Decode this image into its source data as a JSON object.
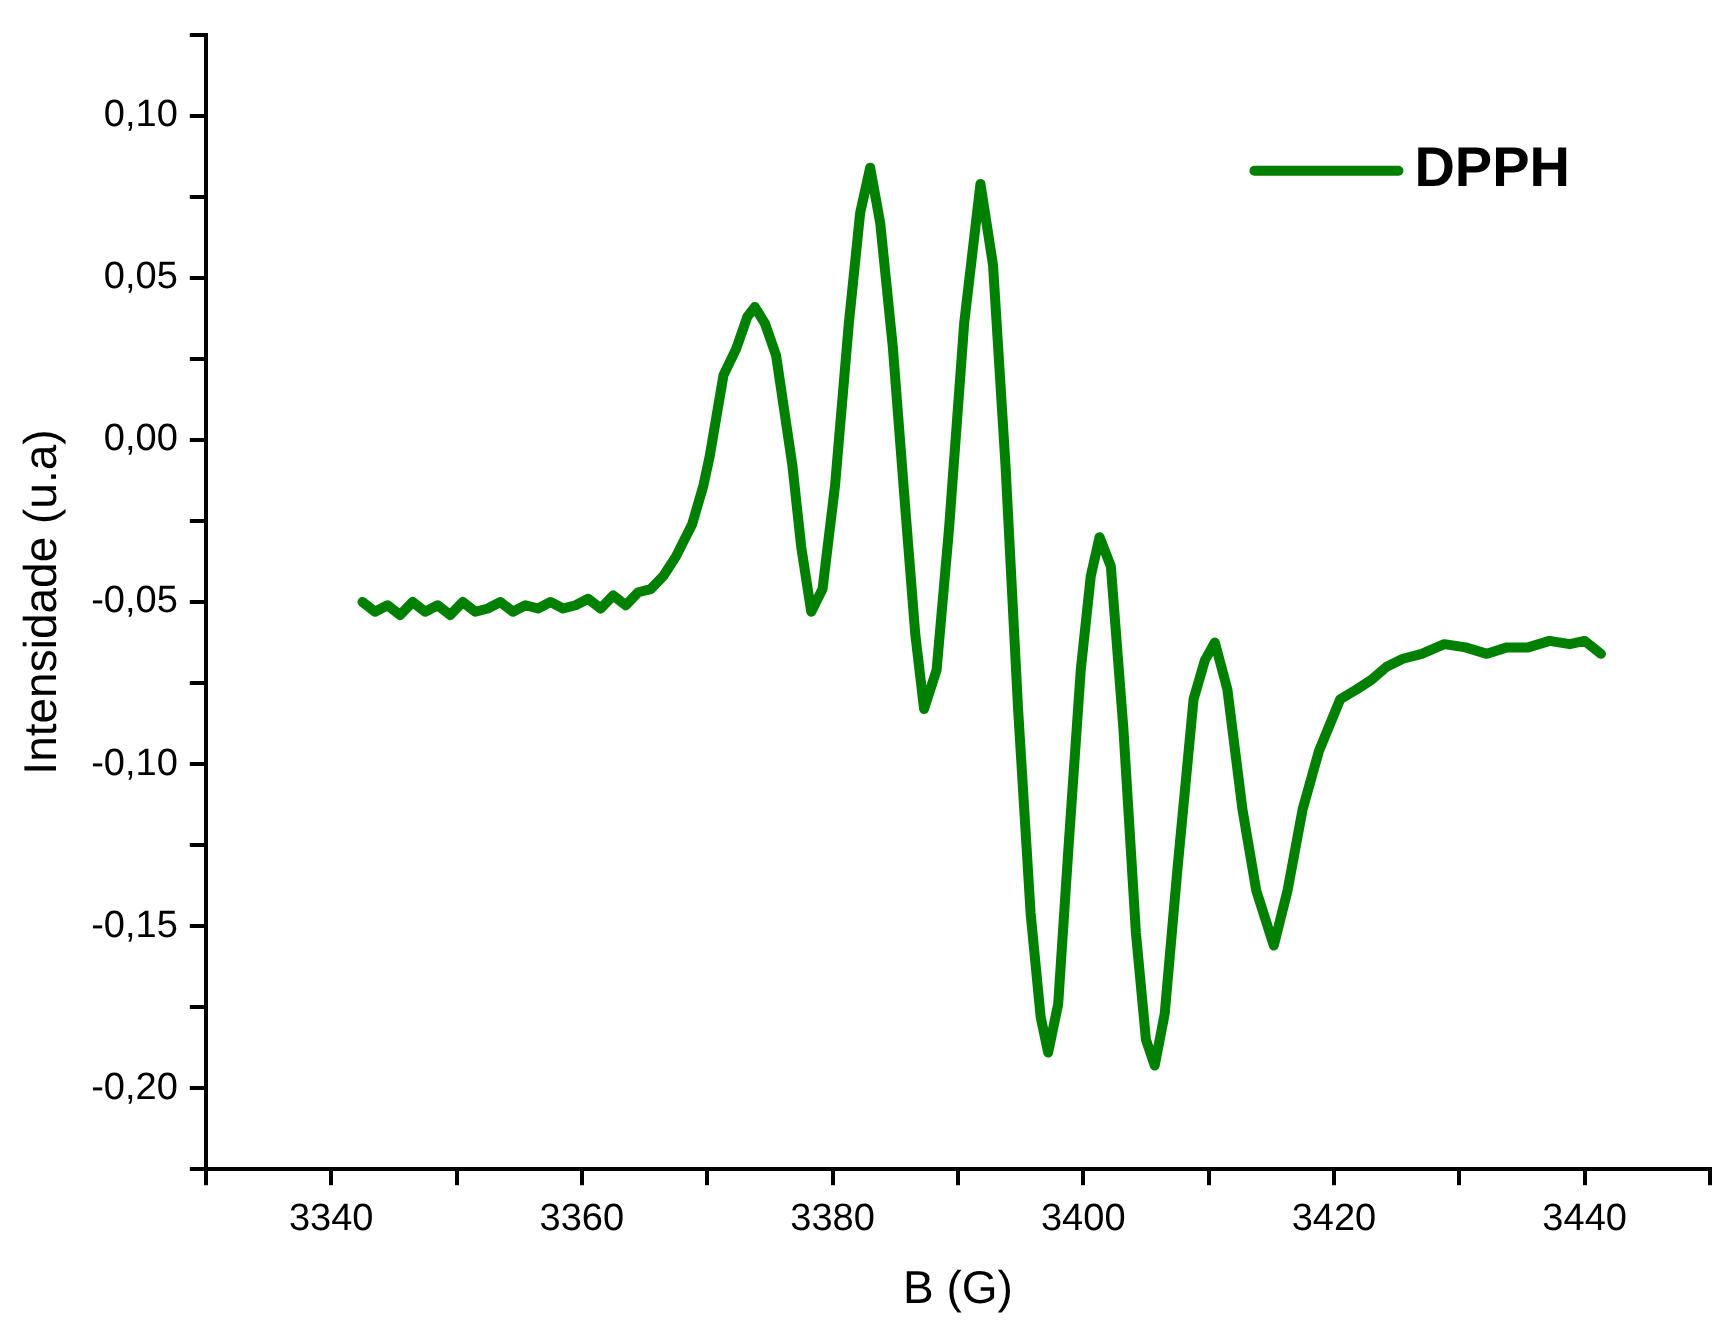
{
  "chart_data": {
    "type": "line",
    "xlabel": "B (G)",
    "ylabel": "Intensidade (u.a)",
    "xlim": [
      3330,
      3450
    ],
    "ylim": [
      -0.225,
      0.125
    ],
    "xticks": [
      {
        "value": 3330,
        "label": null
      },
      3340,
      {
        "value": 3350,
        "label": null
      },
      3360,
      {
        "value": 3370,
        "label": null
      },
      3380,
      {
        "value": 3390,
        "label": null
      },
      3400,
      {
        "value": 3410,
        "label": null
      },
      3420,
      {
        "value": 3430,
        "label": null
      },
      3440,
      {
        "value": 3450,
        "label": null
      }
    ],
    "yticks": [
      {
        "value": -0.225,
        "label": null
      },
      {
        "value": -0.2,
        "label": "-0,20"
      },
      {
        "value": -0.175,
        "label": null
      },
      {
        "value": -0.15,
        "label": "-0,15"
      },
      {
        "value": -0.125,
        "label": null
      },
      {
        "value": -0.1,
        "label": "-0,10"
      },
      {
        "value": -0.075,
        "label": null
      },
      {
        "value": -0.05,
        "label": "-0,05"
      },
      {
        "value": -0.025,
        "label": null
      },
      {
        "value": 0,
        "label": "0,00"
      },
      {
        "value": 0.025,
        "label": null
      },
      {
        "value": 0.05,
        "label": "0,05"
      },
      {
        "value": 0.075,
        "label": null
      },
      {
        "value": 0.1,
        "label": "0,10"
      },
      {
        "value": 0.125,
        "label": null
      }
    ],
    "grid": false,
    "legend": "top right",
    "marker": "none",
    "line_style": "solid",
    "series": [
      {
        "name": "DPPH",
        "color": "#008000",
        "x": [
          3342.5,
          3343.5,
          3344.5,
          3345.5,
          3346.5,
          3347.5,
          3348.5,
          3349.5,
          3350.5,
          3351.5,
          3352.5,
          3353.5,
          3354.5,
          3355.5,
          3356.5,
          3357.5,
          3358.5,
          3359.5,
          3360.5,
          3361.5,
          3362.5,
          3363.5,
          3364.5,
          3365.5,
          3366.5,
          3367.5,
          3368.8,
          3369.7,
          3370.2,
          3371.3,
          3372.3,
          3373.2,
          3373.8,
          3374.6,
          3375.5,
          3376.8,
          3377.5,
          3378.3,
          3379.2,
          3380.2,
          3381.3,
          3382.2,
          3383,
          3383.8,
          3384.8,
          3385.8,
          3386.6,
          3387.3,
          3388.3,
          3389.3,
          3390.5,
          3391.8,
          3392.8,
          3393.8,
          3394.8,
          3395.8,
          3396.6,
          3397.2,
          3398,
          3398.8,
          3399.8,
          3400.6,
          3401.3,
          3402.2,
          3403.2,
          3404.2,
          3405,
          3405.7,
          3406.5,
          3407.5,
          3408.8,
          3409.7,
          3410.5,
          3411.5,
          3412.7,
          3413.8,
          3415.2,
          3416.3,
          3417.5,
          3418.8,
          3420.5,
          3421.8,
          3423,
          3424.2,
          3425.5,
          3427,
          3428.8,
          3430.5,
          3432.2,
          3433.8,
          3435.5,
          3437.2,
          3438.8,
          3440,
          3441.3
        ],
        "values": [
          -0.05,
          -0.053,
          -0.051,
          -0.054,
          -0.05,
          -0.053,
          -0.051,
          -0.054,
          -0.05,
          -0.053,
          -0.052,
          -0.05,
          -0.053,
          -0.051,
          -0.052,
          -0.05,
          -0.052,
          -0.051,
          -0.049,
          -0.052,
          -0.048,
          -0.051,
          -0.047,
          -0.046,
          -0.042,
          -0.036,
          -0.026,
          -0.014,
          -0.005,
          0.02,
          0.028,
          0.038,
          0.041,
          0.036,
          0.026,
          -0.008,
          -0.033,
          -0.053,
          -0.046,
          -0.014,
          0.036,
          0.07,
          0.084,
          0.067,
          0.029,
          -0.021,
          -0.06,
          -0.083,
          -0.071,
          -0.027,
          0.036,
          0.079,
          0.054,
          -0.008,
          -0.083,
          -0.146,
          -0.178,
          -0.189,
          -0.174,
          -0.127,
          -0.071,
          -0.042,
          -0.03,
          -0.039,
          -0.089,
          -0.152,
          -0.185,
          -0.193,
          -0.177,
          -0.133,
          -0.08,
          -0.068,
          -0.0625,
          -0.077,
          -0.114,
          -0.139,
          -0.156,
          -0.139,
          -0.114,
          -0.096,
          -0.08,
          -0.077,
          -0.074,
          -0.07,
          -0.0675,
          -0.066,
          -0.063,
          -0.064,
          -0.066,
          -0.064,
          -0.064,
          -0.062,
          -0.063,
          -0.062,
          -0.066
        ]
      }
    ]
  }
}
